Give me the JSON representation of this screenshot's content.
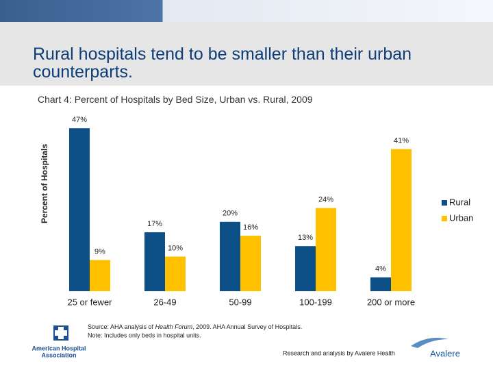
{
  "slide_title": "Rural hospitals tend to be smaller than their urban counterparts.",
  "source": {
    "prefix": "Source:  AHA analysis of ",
    "italic": "Health Forum",
    "suffix": ", 2009.  AHA Annual Survey of Hospitals.",
    "note": "Note: Includes only beds in hospital units."
  },
  "credit": "Research and analysis by Avalere Health",
  "logos": {
    "aha_line1": "American Hospital",
    "aha_line2": "Association",
    "avalere": "Avalere"
  },
  "chart_data": {
    "type": "bar",
    "title": "Chart 4: Percent of Hospitals by Bed Size, Urban vs. Rural, 2009",
    "y_label": "Percent of Hospitals",
    "categories": [
      "25 or fewer",
      "26-49",
      "50-99",
      "100-199",
      "200 or more"
    ],
    "series": [
      {
        "name": "Rural",
        "color": "#0d4f87",
        "values": [
          47,
          17,
          20,
          13,
          4
        ],
        "value_labels": [
          "47%",
          "17%",
          "20%",
          "13%",
          "4%"
        ]
      },
      {
        "name": "Urban",
        "color": "#ffc000",
        "values": [
          9,
          10,
          16,
          24,
          41
        ],
        "value_labels": [
          "9%",
          "10%",
          "16%",
          "24%",
          "41%"
        ]
      }
    ],
    "ylim": [
      0,
      50
    ],
    "legend": "right"
  }
}
